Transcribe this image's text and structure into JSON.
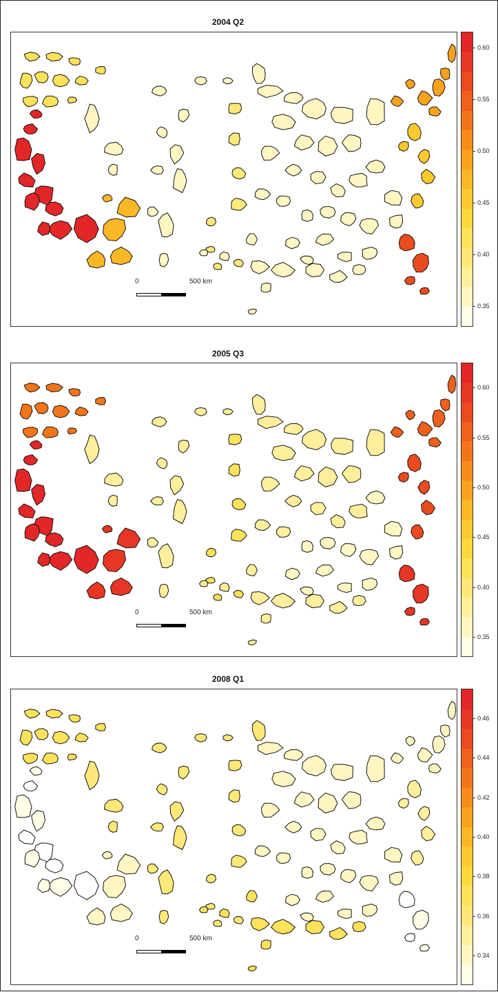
{
  "panels": [
    {
      "title": "2004 Q2",
      "legend_ticks": [
        "0.60",
        "0.55",
        "0.50",
        "0.45",
        "0.40",
        "0.35"
      ],
      "legend_values": [
        0.6,
        0.55,
        0.5,
        0.45,
        0.4,
        0.35
      ],
      "legend_range": [
        0.33,
        0.615
      ],
      "regions": {
        "pacific_nw": 0.42,
        "california": 0.6,
        "southwest": 0.47,
        "rockies": 0.36,
        "plains": 0.4,
        "midwest": 0.36,
        "south": 0.35,
        "gulf": 0.35,
        "northeast": 0.5,
        "mid_atlantic": 0.45,
        "florida": 0.57,
        "texas_nm": 0.36
      }
    },
    {
      "title": "2005 Q3",
      "legend_ticks": [
        "0.60",
        "0.55",
        "0.50",
        "0.45",
        "0.40",
        "0.35"
      ],
      "legend_values": [
        0.6,
        0.55,
        0.5,
        0.45,
        0.4,
        0.35
      ],
      "legend_range": [
        0.33,
        0.625
      ],
      "regions": {
        "pacific_nw": 0.54,
        "california": 0.61,
        "southwest": 0.6,
        "rockies": 0.38,
        "plains": 0.42,
        "midwest": 0.37,
        "south": 0.36,
        "gulf": 0.38,
        "northeast": 0.56,
        "mid_atlantic": 0.57,
        "florida": 0.6,
        "texas_nm": 0.37
      }
    },
    {
      "title": "2008 Q1",
      "legend_ticks": [
        "0.46",
        "0.44",
        "0.42",
        "0.40",
        "0.38",
        "0.36",
        "0.34"
      ],
      "legend_values": [
        0.46,
        0.44,
        0.42,
        0.4,
        0.38,
        0.36,
        0.34
      ],
      "legend_range": [
        0.325,
        0.475
      ],
      "regions": {
        "pacific_nw": 0.37,
        "california": 0.325,
        "southwest": 0.34,
        "rockies": 0.36,
        "plains": 0.36,
        "midwest": 0.345,
        "south": 0.345,
        "gulf": 0.37,
        "northeast": 0.345,
        "mid_atlantic": 0.355,
        "florida": 0.33,
        "texas_nm": 0.37
      }
    }
  ],
  "scale_bar": {
    "left_label": "0",
    "right_label": "500 km"
  },
  "palette": [
    "#fffde6",
    "#fff6c2",
    "#ffef9c",
    "#ffe878",
    "#fde25a",
    "#fdd83c",
    "#fcc92e",
    "#fbb725",
    "#f9a21e",
    "#f78c1a",
    "#f47519",
    "#f05f1b",
    "#ec4a1f",
    "#e73624",
    "#e32628"
  ]
}
